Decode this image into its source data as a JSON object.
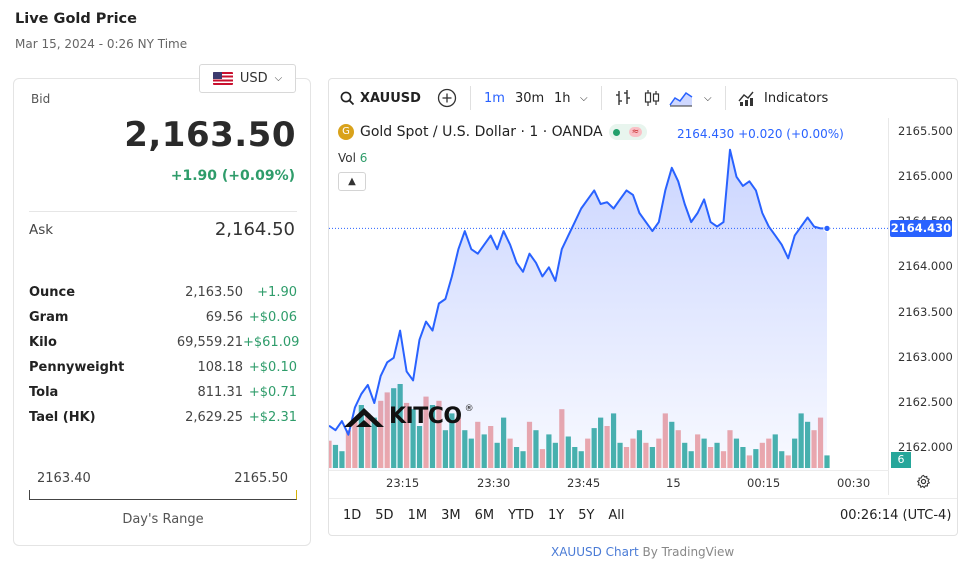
{
  "header": {
    "title": "Live Gold Price",
    "timestamp": "Mar 15, 2024 - 0:26 NY Time"
  },
  "currency": {
    "selected": "USD",
    "flag": "us-flag-icon"
  },
  "quote": {
    "bid_label": "Bid",
    "bid": "2,163.50",
    "change": "+1.90 (+0.09%)",
    "ask_label": "Ask",
    "ask": "2,164.50",
    "up_color": "#2e9c6a"
  },
  "units": [
    {
      "unit": "Ounce",
      "price": "2,163.50",
      "change": "+1.90"
    },
    {
      "unit": "Gram",
      "price": "69.56",
      "change": "+$0.06"
    },
    {
      "unit": "Kilo",
      "price": "69,559.21",
      "change": "+$61.09"
    },
    {
      "unit": "Pennyweight",
      "price": "108.18",
      "change": "+$0.10"
    },
    {
      "unit": "Tola",
      "price": "811.31",
      "change": "+$0.71"
    },
    {
      "unit": "Tael (HK)",
      "price": "2,629.25",
      "change": "+$2.31"
    }
  ],
  "day_range": {
    "low": "2163.40",
    "high": "2165.50",
    "label": "Day's Range"
  },
  "chart_toolbar": {
    "symbol": "XAUUSD",
    "intervals": [
      "1m",
      "30m",
      "1h"
    ],
    "active_interval": "1m",
    "indicators_label": "Indicators"
  },
  "chart_legend": {
    "name": "Gold Spot / U.S. Dollar · 1 · OANDA",
    "coin_letter": "G",
    "ohlc": "2164.430 +0.020 (+0.00%)",
    "vol_label": "Vol",
    "vol_value": "6"
  },
  "chart_data": {
    "type": "area",
    "title": "Gold Spot / U.S. Dollar · 1 · OANDA",
    "xlabel": "",
    "ylabel": "",
    "ylim": [
      2161.76,
      2165.65
    ],
    "y_ticks": [
      {
        "v": 2165.5,
        "label": "2165.500"
      },
      {
        "v": 2165.0,
        "label": "2165.000"
      },
      {
        "v": 2164.5,
        "label": "2164.500"
      },
      {
        "v": 2164.0,
        "label": "2164.000"
      },
      {
        "v": 2163.5,
        "label": "2163.500"
      },
      {
        "v": 2163.0,
        "label": "2163.000"
      },
      {
        "v": 2162.5,
        "label": "2162.500"
      },
      {
        "v": 2162.0,
        "label": "2162.000"
      }
    ],
    "x_ticks": [
      "23:15",
      "23:30",
      "23:45",
      "15",
      "00:15",
      "00:30"
    ],
    "last_price": "2164.430",
    "last_value": 2164.43,
    "vol_last": "6",
    "line_color": "#2962ff",
    "prices": [
      2162.25,
      2162.2,
      2162.3,
      2162.15,
      2162.45,
      2162.6,
      2162.7,
      2162.5,
      2162.8,
      2162.95,
      2163.0,
      2163.3,
      2162.85,
      2162.75,
      2163.2,
      2163.4,
      2163.3,
      2163.6,
      2163.65,
      2163.9,
      2164.2,
      2164.4,
      2164.2,
      2164.15,
      2164.25,
      2164.35,
      2164.2,
      2164.4,
      2164.25,
      2164.05,
      2163.95,
      2164.15,
      2164.05,
      2163.9,
      2164.0,
      2163.85,
      2164.2,
      2164.35,
      2164.5,
      2164.65,
      2164.75,
      2164.85,
      2164.7,
      2164.72,
      2164.65,
      2164.75,
      2164.85,
      2164.8,
      2164.6,
      2164.5,
      2164.4,
      2164.5,
      2164.85,
      2165.1,
      2164.95,
      2164.7,
      2164.5,
      2164.6,
      2164.75,
      2164.5,
      2164.45,
      2164.5,
      2165.3,
      2165.0,
      2164.9,
      2164.95,
      2164.85,
      2164.6,
      2164.45,
      2164.35,
      2164.25,
      2164.1,
      2164.35,
      2164.45,
      2164.55,
      2164.45,
      2164.43,
      2164.43
    ],
    "volumes": [
      13,
      11,
      8,
      18,
      22,
      30,
      26,
      24,
      32,
      36,
      38,
      40,
      31,
      28,
      20,
      34,
      30,
      32,
      18,
      26,
      24,
      18,
      14,
      22,
      16,
      20,
      12,
      24,
      14,
      10,
      8,
      22,
      18,
      9,
      16,
      12,
      28,
      15,
      10,
      8,
      14,
      19,
      24,
      20,
      26,
      12,
      10,
      14,
      18,
      12,
      10,
      14,
      26,
      22,
      18,
      12,
      8,
      16,
      14,
      10,
      12,
      8,
      18,
      14,
      10,
      6,
      9,
      12,
      14,
      16,
      8,
      6,
      14,
      26,
      22,
      18,
      24,
      6
    ],
    "volume_up": [
      0,
      1,
      1,
      0,
      0,
      1,
      0,
      1,
      0,
      0,
      1,
      1,
      0,
      1,
      1,
      0,
      1,
      0,
      1,
      1,
      0,
      1,
      1,
      0,
      1,
      0,
      1,
      1,
      0,
      1,
      1,
      0,
      1,
      0,
      1,
      1,
      0,
      1,
      1,
      1,
      0,
      1,
      1,
      0,
      1,
      1,
      0,
      0,
      1,
      0,
      1,
      0,
      0,
      1,
      0,
      1,
      1,
      0,
      1,
      0,
      1,
      0,
      0,
      1,
      1,
      0,
      1,
      0,
      0,
      1,
      1,
      0,
      1,
      1,
      1,
      0,
      0,
      1
    ],
    "up_color": "#26a69a",
    "down_color": "#ef9a9a"
  },
  "ranges": [
    "1D",
    "5D",
    "1M",
    "3M",
    "6M",
    "YTD",
    "1Y",
    "5Y",
    "All"
  ],
  "clock": "00:26:14 (UTC-4)",
  "credit": {
    "link": "XAUUSD Chart",
    "by": "By TradingView"
  },
  "watermark": {
    "text": "KITCO",
    "reg": "®"
  }
}
